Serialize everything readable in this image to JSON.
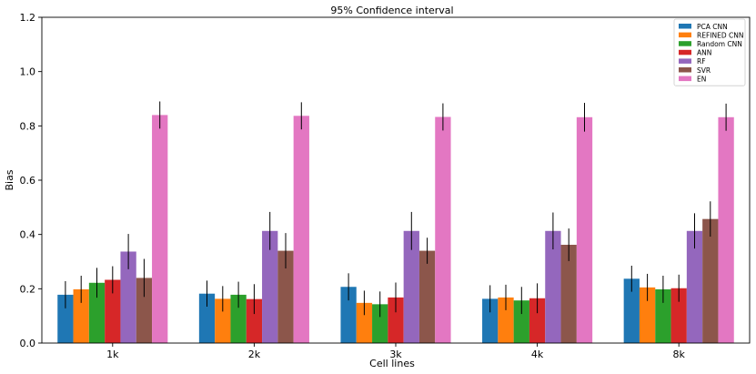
{
  "chart_data": {
    "type": "bar",
    "title": "95% Confidence interval",
    "xlabel": "Cell lines",
    "ylabel": "Bias",
    "ylim": [
      0,
      1.2
    ],
    "yticks": [
      0.0,
      0.2,
      0.4,
      0.6,
      0.8,
      1.0,
      1.2
    ],
    "ytick_labels": [
      "0.0",
      "0.2",
      "0.4",
      "0.6",
      "0.8",
      "1.0",
      "1.2"
    ],
    "categories": [
      "1k",
      "2k",
      "3k",
      "4k",
      "8k"
    ],
    "legend_position": "top-right",
    "error_bars": true,
    "series": [
      {
        "name": "PCA CNN",
        "color": "#1f77b4",
        "values": [
          0.178,
          0.182,
          0.207,
          0.163,
          0.237
        ],
        "err": [
          0.05,
          0.048,
          0.05,
          0.05,
          0.048
        ]
      },
      {
        "name": "REFINED CNN",
        "color": "#ff7f0e",
        "values": [
          0.198,
          0.163,
          0.148,
          0.168,
          0.205
        ],
        "err": [
          0.05,
          0.047,
          0.045,
          0.047,
          0.05
        ]
      },
      {
        "name": "Random CNN",
        "color": "#2ca02c",
        "values": [
          0.222,
          0.178,
          0.143,
          0.157,
          0.198
        ],
        "err": [
          0.055,
          0.048,
          0.047,
          0.05,
          0.05
        ]
      },
      {
        "name": "ANN",
        "color": "#d62728",
        "values": [
          0.233,
          0.162,
          0.168,
          0.165,
          0.202
        ],
        "err": [
          0.05,
          0.055,
          0.055,
          0.055,
          0.05
        ]
      },
      {
        "name": "RF",
        "color": "#9467bd",
        "values": [
          0.337,
          0.413,
          0.413,
          0.413,
          0.413
        ],
        "err": [
          0.065,
          0.07,
          0.07,
          0.068,
          0.065
        ]
      },
      {
        "name": "SVR",
        "color": "#8c564b",
        "values": [
          0.24,
          0.34,
          0.34,
          0.362,
          0.457
        ],
        "err": [
          0.07,
          0.065,
          0.048,
          0.06,
          0.065
        ]
      },
      {
        "name": "EN",
        "color": "#e377c2",
        "values": [
          0.84,
          0.837,
          0.833,
          0.832,
          0.832
        ],
        "err": [
          0.05,
          0.05,
          0.05,
          0.053,
          0.05
        ]
      }
    ]
  }
}
